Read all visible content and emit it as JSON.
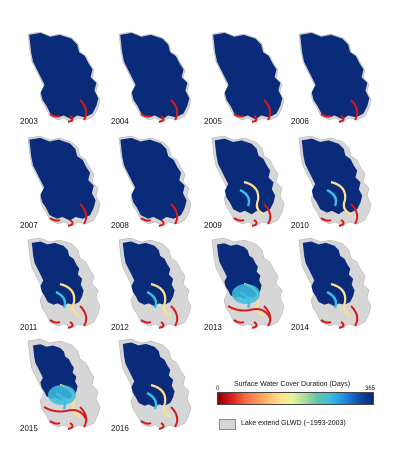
{
  "panels": [
    {
      "year": "2003",
      "state": "full"
    },
    {
      "year": "2004",
      "state": "full"
    },
    {
      "year": "2005",
      "state": "full"
    },
    {
      "year": "2006",
      "state": "full"
    },
    {
      "year": "2007",
      "state": "near-full"
    },
    {
      "year": "2008",
      "state": "near-full"
    },
    {
      "year": "2009",
      "state": "shrinking"
    },
    {
      "year": "2010",
      "state": "shrinking"
    },
    {
      "year": "2011",
      "state": "low"
    },
    {
      "year": "2012",
      "state": "low"
    },
    {
      "year": "2013",
      "state": "very-low"
    },
    {
      "year": "2014",
      "state": "low"
    },
    {
      "year": "2015",
      "state": "very-low"
    },
    {
      "year": "2016",
      "state": "low"
    }
  ],
  "legend": {
    "colorbar_title": "Surface Water Cover Duration (Days)",
    "colorbar_min": "0",
    "colorbar_max": "365",
    "gray_label": "Lake extend GLWD (~1993-2003)"
  },
  "colors": {
    "deep_water": "#0a2a7a",
    "lake_outline_gray": "#d6d6d6",
    "short_duration": "#d7191c",
    "mid_duration": "#fee08b",
    "long_duration": "#3bbfe0"
  }
}
